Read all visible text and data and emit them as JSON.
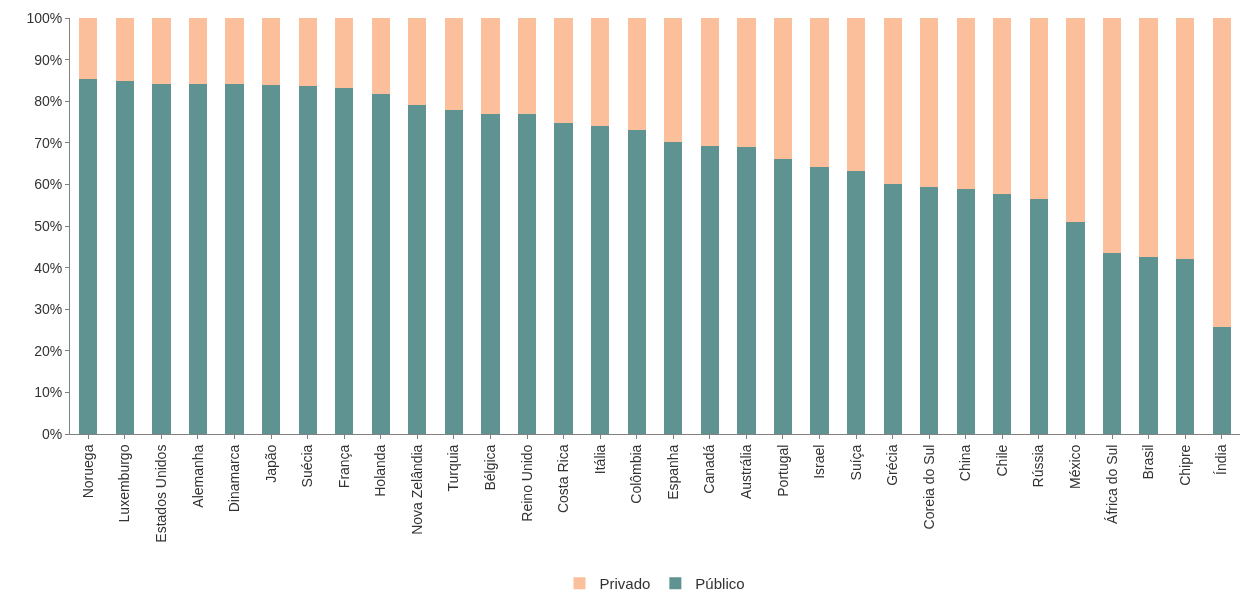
{
  "chart_data": {
    "type": "bar",
    "stacked": true,
    "categories": [
      "Noruega",
      "Luxemburgo",
      "Estados Unidos",
      "Alemanha",
      "Dinamarca",
      "Japão",
      "Suécia",
      "França",
      "Holanda",
      "Nova Zelândia",
      "Turquia",
      "Bélgica",
      "Reino Unido",
      "Costa Rica",
      "Itália",
      "Colômbia",
      "Espanha",
      "Canadá",
      "Austrália",
      "Portugal",
      "Israel",
      "Suíça",
      "Grécia",
      "Coreia do Sul",
      "China",
      "Chile",
      "Rússia",
      "México",
      "África do Sul",
      "Brasil",
      "Chipre",
      "Índia"
    ],
    "series": [
      {
        "name": "Público",
        "color": "#5f9391",
        "values": [
          85.3,
          84.8,
          84.1,
          84.1,
          84.1,
          83.9,
          83.6,
          83.2,
          81.8,
          79.0,
          77.8,
          76.9,
          76.9,
          74.8,
          74.1,
          73.1,
          70.1,
          69.2,
          68.9,
          66.1,
          64.3,
          63.3,
          60.0,
          59.3,
          58.9,
          57.7,
          56.5,
          50.9,
          43.5,
          42.5,
          42.1,
          25.7
        ]
      },
      {
        "name": "Privado",
        "color": "#fbbf9c",
        "values": [
          14.7,
          15.2,
          15.9,
          15.9,
          15.9,
          16.1,
          16.4,
          16.8,
          18.2,
          21.0,
          22.2,
          23.1,
          23.1,
          25.2,
          25.9,
          26.9,
          29.9,
          30.8,
          31.1,
          33.9,
          35.7,
          36.7,
          40.0,
          40.7,
          41.1,
          42.3,
          43.5,
          49.1,
          56.5,
          57.5,
          57.9,
          74.3
        ]
      }
    ],
    "ylim": [
      0,
      100
    ],
    "yticks": [
      {
        "value": 0,
        "label": "0%"
      },
      {
        "value": 10,
        "label": "10%"
      },
      {
        "value": 20,
        "label": "20%"
      },
      {
        "value": 30,
        "label": "30%"
      },
      {
        "value": 40,
        "label": "40%"
      },
      {
        "value": 50,
        "label": "50%"
      },
      {
        "value": 60,
        "label": "60%"
      },
      {
        "value": 70,
        "label": "70%"
      },
      {
        "value": 80,
        "label": "80%"
      },
      {
        "value": 90,
        "label": "90%"
      },
      {
        "value": 100,
        "label": "100%"
      }
    ],
    "legend": "bottom"
  }
}
